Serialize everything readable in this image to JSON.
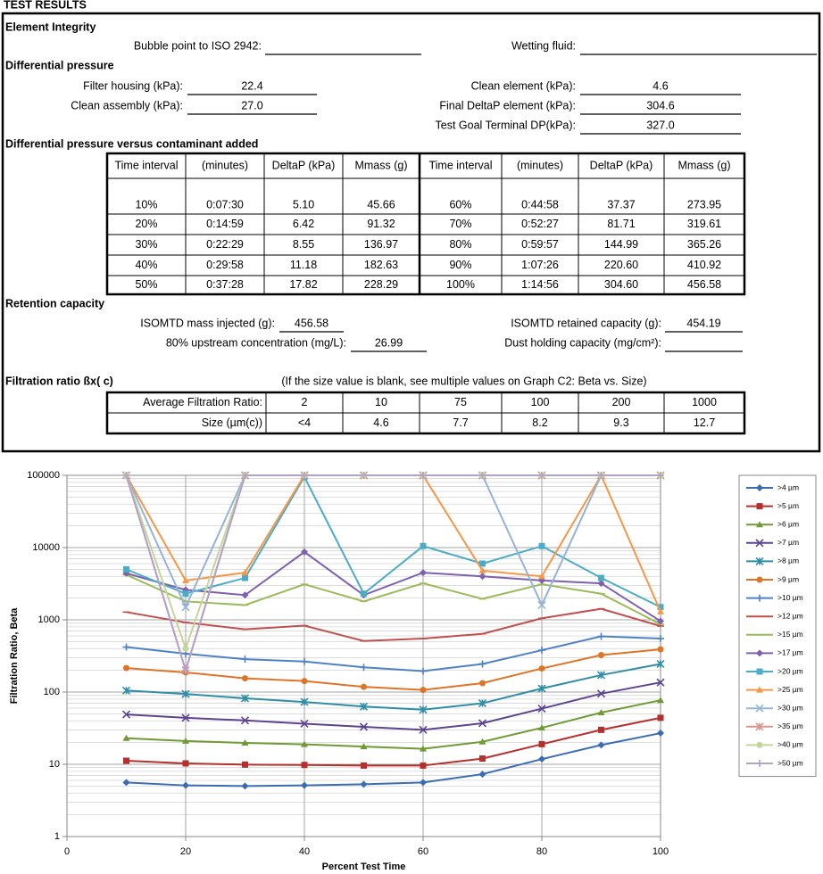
{
  "header": {
    "title": "TEST RESULTS"
  },
  "element_integrity": {
    "title": "Element Integrity",
    "fields": [
      {
        "label": "Bubble point to ISO 2942:"
      },
      {
        "label": "Wetting fluid:"
      }
    ]
  },
  "differential_pressure": {
    "title": "Differential pressure",
    "fields": [
      {
        "label": "Filter housing (kPa):",
        "value": "22.4"
      },
      {
        "label": "Clean element (kPa):",
        "value": "4.6"
      },
      {
        "label": "Clean assembly (kPa):",
        "value": "27.0"
      },
      {
        "label": "Final DeltaP element (kPa):",
        "value": "304.6"
      },
      {
        "label": "Test Goal Terminal DP(kPa):",
        "value": "327.0"
      }
    ]
  },
  "dp_table": {
    "title": "Differential pressure versus contaminant added",
    "header": [
      "Time interval",
      "(minutes)",
      "DeltaP (kPa)",
      "Mmass (g)",
      "Time interval",
      "(minutes)",
      "DeltaP (kPa)",
      "Mmass (g)"
    ],
    "rows": [
      [
        "10%",
        "0:07:30",
        "5.10",
        "45.66",
        "60%",
        "0:44:58",
        "37.37",
        "273.95"
      ],
      [
        "20%",
        "0:14:59",
        "6.42",
        "91.32",
        "70%",
        "0:52:27",
        "81.71",
        "319.61"
      ],
      [
        "30%",
        "0:22:29",
        "8.55",
        "136.97",
        "80%",
        "0:59:57",
        "144.99",
        "365.26"
      ],
      [
        "40%",
        "0:29:58",
        "11.18",
        "182.63",
        "90%",
        "1:07:26",
        "220.60",
        "410.92"
      ],
      [
        "50%",
        "0:37:28",
        "17.82",
        "228.29",
        "100%",
        "1:14:56",
        "304.60",
        "456.58"
      ]
    ]
  },
  "retention": {
    "title": "Retention capacity",
    "fields": [
      {
        "label": "ISOMTD mass injected (g):",
        "value": "456.58"
      },
      {
        "label": "ISOMTD retained capacity (g):",
        "value": "454.19"
      },
      {
        "label": "80% upstream concentration (mg/L):",
        "value": "26.99"
      },
      {
        "label": "Dust holding capacity (mg/cm²):"
      }
    ]
  },
  "filtration": {
    "title": "Filtration ratio ßx( c)",
    "note": "(If the size value is blank, see multiple values on Graph C2: Beta vs. Size)",
    "rows": [
      [
        "Average Filtration Ratio:",
        "2",
        "10",
        "75",
        "100",
        "200",
        "1000"
      ],
      [
        "Size (µm(c))",
        "<4",
        "4.6",
        "7.7",
        "8.2",
        "9.3",
        "12.7"
      ]
    ]
  },
  "chart_data": {
    "type": "line",
    "x_label": "Percent Test Time",
    "y_label": "Filtration Ratio, Beta",
    "x": [
      10,
      20,
      30,
      40,
      50,
      60,
      70,
      80,
      90,
      100
    ],
    "xlim": [
      0,
      100
    ],
    "xticks": [
      0,
      20,
      40,
      60,
      80,
      100
    ],
    "ylim": [
      1,
      100000
    ],
    "yticks": [
      1,
      10,
      100,
      1000,
      10000,
      100000
    ],
    "y_scale": "log",
    "grid": true,
    "minor_grid": true,
    "legend": "right",
    "series": [
      {
        "name": ">4 µm",
        "color": "#3a6cb3",
        "marker": "diamond",
        "values": [
          5.6,
          5.1,
          5.0,
          5.1,
          5.3,
          5.6,
          7.3,
          11.8,
          18.5,
          27
        ]
      },
      {
        "name": ">5 µm",
        "color": "#b5302c",
        "marker": "square",
        "values": [
          11.2,
          10.3,
          9.9,
          9.8,
          9.6,
          9.6,
          12,
          19,
          30,
          44
        ]
      },
      {
        "name": ">6 µm",
        "color": "#6f9a34",
        "marker": "triangle",
        "values": [
          23,
          21,
          19.8,
          18.9,
          17.6,
          16.4,
          20.5,
          32,
          52,
          77
        ]
      },
      {
        "name": ">7 µm",
        "color": "#5e4490",
        "marker": "x",
        "values": [
          49,
          44,
          40.5,
          36.5,
          33,
          30,
          37,
          59,
          95,
          136
        ]
      },
      {
        "name": ">8 µm",
        "color": "#2f8ea6",
        "marker": "star",
        "values": [
          105,
          94,
          82,
          73,
          63,
          57,
          70,
          112,
          172,
          245
        ]
      },
      {
        "name": ">9 µm",
        "color": "#df7427",
        "marker": "circle",
        "values": [
          215,
          187,
          155,
          142,
          118,
          107,
          133,
          212,
          325,
          390
        ]
      },
      {
        "name": ">10 µm",
        "color": "#4f81c7",
        "marker": "plus",
        "values": [
          420,
          340,
          285,
          265,
          220,
          195,
          245,
          380,
          590,
          550
        ]
      },
      {
        "name": ">12 µm",
        "color": "#c0504d",
        "marker": "dash",
        "values": [
          1280,
          920,
          740,
          830,
          510,
          550,
          640,
          1050,
          1420,
          820
        ]
      },
      {
        "name": ">15 µm",
        "color": "#9bbb59",
        "marker": "dash",
        "values": [
          4200,
          1800,
          1600,
          3100,
          1800,
          3200,
          1950,
          3100,
          2300,
          870
        ]
      },
      {
        "name": ">17 µm",
        "color": "#7f5fb0",
        "marker": "diamond",
        "values": [
          4400,
          2600,
          2200,
          8700,
          2200,
          4500,
          4000,
          3500,
          3200,
          960
        ]
      },
      {
        "name": ">20 µm",
        "color": "#4bacc6",
        "marker": "square",
        "values": [
          5000,
          2300,
          3800,
          95000,
          2300,
          10500,
          6000,
          10500,
          3800,
          1500
        ]
      },
      {
        "name": ">25 µm",
        "color": "#f79646",
        "marker": "triangle",
        "values": [
          100000,
          3500,
          4500,
          100000,
          100000,
          100000,
          4800,
          4000,
          100000,
          1300
        ]
      },
      {
        "name": ">30 µm",
        "color": "#95b3d7",
        "marker": "x",
        "values": [
          100000,
          1500,
          100000,
          100000,
          100000,
          100000,
          100000,
          1600,
          100000,
          100000
        ]
      },
      {
        "name": ">35 µm",
        "color": "#d99694",
        "marker": "star",
        "values": [
          100000,
          200,
          100000,
          100000,
          100000,
          100000,
          100000,
          100000,
          100000,
          100000
        ]
      },
      {
        "name": ">40 µm",
        "color": "#c3d69b",
        "marker": "circle",
        "values": [
          100000,
          400,
          100000,
          100000,
          100000,
          100000,
          100000,
          100000,
          100000,
          100000
        ]
      },
      {
        "name": ">50 µm",
        "color": "#b3a2c7",
        "marker": "plus",
        "values": [
          100000,
          200,
          100000,
          100000,
          100000,
          100000,
          100000,
          100000,
          100000,
          100000
        ]
      }
    ]
  }
}
